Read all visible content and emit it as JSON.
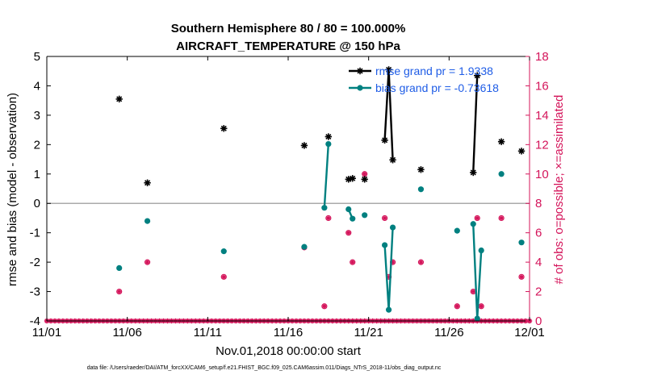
{
  "chart_data": {
    "type": "scatter",
    "title": "Southern Hemisphere 80 / 80 = 100.000%",
    "subtitle": "AIRCRAFT_TEMPERATURE @ 150 hPa",
    "xlabel": "Nov.01,2018 00:00:00 start",
    "ylabel_left": "rmse and bias (model - observation)",
    "ylabel_right": "# of obs: o=possible; ×=assimilated",
    "footer": "data file: /Users/raeder/DAI/ATM_forcXX/CAM6_setup/f.e21.FHIST_BGC.f09_025.CAM6assim.011/Diags_NTrS_2018-11/obs_diag_output.nc",
    "xlim": [
      0,
      30
    ],
    "ylim_left": [
      -4,
      5
    ],
    "ylim_right": [
      0,
      18
    ],
    "x_ticks": [
      0,
      5,
      10,
      15,
      20,
      25,
      30
    ],
    "x_tick_labels": [
      "11/01",
      "11/06",
      "11/11",
      "11/16",
      "11/21",
      "11/26",
      "12/01"
    ],
    "y_ticks_left": [
      -4,
      -3,
      -2,
      -1,
      0,
      1,
      2,
      3,
      4,
      5
    ],
    "y_ticks_right": [
      0,
      2,
      4,
      6,
      8,
      10,
      12,
      14,
      16,
      18
    ],
    "colors": {
      "rmse": "#000000",
      "bias": "#008080",
      "obs": "#d4145a",
      "zero_line": "#aaaaaa",
      "legend_text": "#1e5ce6"
    },
    "legend": [
      {
        "key": "rmse",
        "label": "rmse grand pr = 1.9338"
      },
      {
        "key": "bias",
        "label": "bias grand pr = -0.73618"
      }
    ],
    "rmse_segments": [
      [
        [
          4.5,
          3.55
        ]
      ],
      [
        [
          6.25,
          0.7
        ]
      ],
      [
        [
          11.0,
          2.55
        ]
      ],
      [
        [
          16.0,
          1.97
        ]
      ],
      [
        [
          17.5,
          2.27
        ]
      ],
      [
        [
          18.75,
          0.82
        ],
        [
          19.0,
          0.85
        ]
      ],
      [
        [
          19.75,
          0.82
        ]
      ],
      [
        [
          21.0,
          2.15
        ],
        [
          21.25,
          4.55
        ],
        [
          21.5,
          1.48
        ]
      ],
      [
        [
          23.25,
          1.15
        ]
      ],
      [
        [
          26.5,
          1.05
        ],
        [
          26.75,
          4.35
        ]
      ],
      [
        [
          28.25,
          2.1
        ]
      ],
      [
        [
          29.5,
          1.78
        ]
      ]
    ],
    "bias_segments": [
      [
        [
          4.5,
          -2.2
        ]
      ],
      [
        [
          6.25,
          -0.6
        ]
      ],
      [
        [
          11.0,
          -1.63
        ]
      ],
      [
        [
          16.0,
          -1.48
        ]
      ],
      [
        [
          17.25,
          -0.15
        ],
        [
          17.5,
          2.02
        ]
      ],
      [
        [
          18.75,
          -0.2
        ],
        [
          19.0,
          -0.52
        ]
      ],
      [
        [
          19.75,
          -0.4
        ]
      ],
      [
        [
          21.0,
          -1.42
        ],
        [
          21.25,
          -3.62
        ],
        [
          21.5,
          -0.82
        ]
      ],
      [
        [
          23.25,
          0.48
        ]
      ],
      [
        [
          25.5,
          -0.93
        ]
      ],
      [
        [
          26.5,
          -0.7
        ],
        [
          26.75,
          -3.92
        ],
        [
          27.0,
          -1.6
        ]
      ],
      [
        [
          28.25,
          1.0
        ]
      ],
      [
        [
          29.5,
          -1.33
        ]
      ]
    ],
    "obs_possible": [
      [
        4.5,
        2
      ],
      [
        6.25,
        4
      ],
      [
        11.0,
        3
      ],
      [
        16.0,
        5
      ],
      [
        17.25,
        1
      ],
      [
        17.5,
        7
      ],
      [
        18.75,
        6
      ],
      [
        19.0,
        4
      ],
      [
        19.75,
        10
      ],
      [
        21.0,
        7
      ],
      [
        21.25,
        3
      ],
      [
        21.5,
        4
      ],
      [
        23.25,
        4
      ],
      [
        25.5,
        1
      ],
      [
        26.5,
        2
      ],
      [
        26.75,
        7
      ],
      [
        27.0,
        1
      ],
      [
        28.25,
        7
      ],
      [
        29.5,
        3
      ]
    ]
  }
}
